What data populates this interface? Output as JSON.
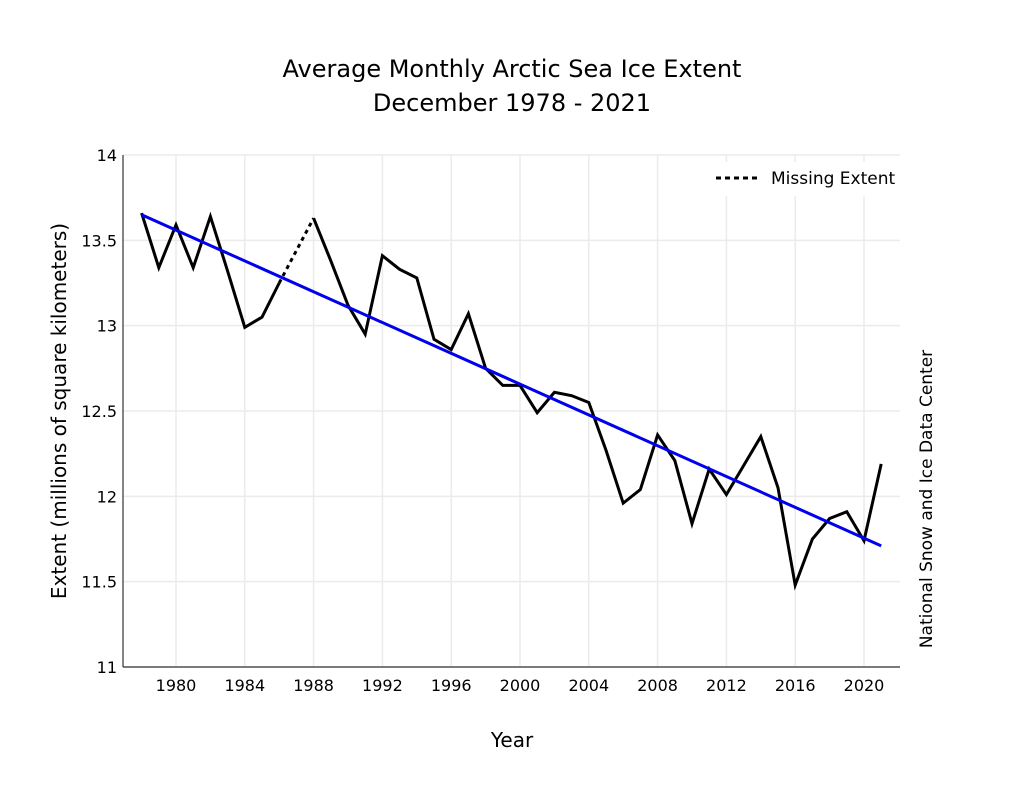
{
  "chart_data": {
    "type": "line",
    "title": "Average Monthly Arctic Sea Ice Extent",
    "subtitle": "December 1978 - 2021",
    "xlabel": "Year",
    "ylabel": "Extent (millions of square kilometers)",
    "side_label": "National Snow and Ice Data Center",
    "xlim": [
      1977.8,
      2022.3
    ],
    "ylim": [
      11,
      14
    ],
    "grid": true,
    "x_ticks": [
      1980,
      1984,
      1988,
      1992,
      1996,
      2000,
      2004,
      2008,
      2012,
      2016,
      2020
    ],
    "x_tick_labels": [
      "1980",
      "1984",
      "1988",
      "1992",
      "1996",
      "2000",
      "2004",
      "2008",
      "2012",
      "2016",
      "2020"
    ],
    "y_ticks": [
      11,
      11.5,
      12,
      12.5,
      13,
      13.5,
      14
    ],
    "y_tick_labels": [
      "11",
      "11.5",
      "12",
      "12.5",
      "13",
      "13.5",
      "14"
    ],
    "legend": {
      "placement": "top-right",
      "entries": [
        {
          "label": "Missing Extent",
          "style": "dotted",
          "color": "#000000"
        }
      ]
    },
    "series": [
      {
        "name": "Extent",
        "color": "#000000",
        "style": "solid",
        "segments": [
          {
            "x": [
              1978,
              1979,
              1980,
              1981,
              1982,
              1983,
              1984,
              1985,
              1986
            ],
            "y": [
              13.66,
              13.34,
              13.59,
              13.34,
              13.64,
              13.32,
              12.99,
              13.05,
              13.25
            ]
          },
          {
            "x": [
              1988,
              1989,
              1990,
              1991,
              1992,
              1993,
              1994,
              1995,
              1996,
              1997,
              1998,
              1999,
              2000,
              2001,
              2002,
              2003,
              2004,
              2005,
              2006,
              2007,
              2008,
              2009,
              2010,
              2011,
              2012,
              2013,
              2014,
              2015,
              2016,
              2017,
              2018,
              2019,
              2020,
              2021
            ],
            "y": [
              13.63,
              13.38,
              13.12,
              12.95,
              13.41,
              13.33,
              13.28,
              12.92,
              12.86,
              13.07,
              12.75,
              12.65,
              12.65,
              12.49,
              12.61,
              12.59,
              12.55,
              12.27,
              11.96,
              12.04,
              12.36,
              12.21,
              11.84,
              12.16,
              12.01,
              12.18,
              12.35,
              12.05,
              11.48,
              11.75,
              11.87,
              11.91,
              11.74,
              12.19
            ]
          }
        ]
      },
      {
        "name": "Missing Extent",
        "color": "#000000",
        "style": "dotted",
        "x": [
          1986,
          1988
        ],
        "y": [
          13.25,
          13.63
        ]
      },
      {
        "name": "Linear Trend",
        "color": "#0000ee",
        "style": "solid",
        "x": [
          1978,
          2021
        ],
        "y": [
          13.65,
          11.71
        ]
      }
    ]
  }
}
